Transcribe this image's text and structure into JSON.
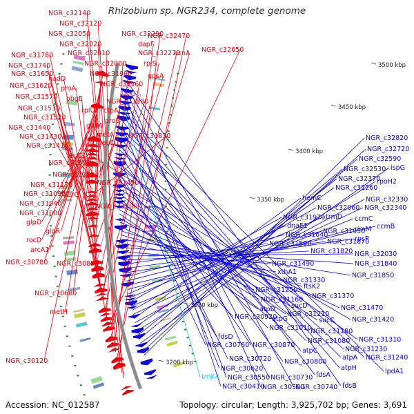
{
  "title": "Rhizobium sp. NGR234, complete genome",
  "accession": "Accession: NC_012587",
  "summary": "Topology: circular; Length: 3,925,702 bp; Genes: 3,691",
  "colors": {
    "forward": "#e8000b",
    "reverse": "#0a00e0",
    "rna": "#e060a0",
    "trna_cyan": "#18c8d8",
    "backbone": "#8a8a8a",
    "tick": "#2a8a2a"
  },
  "scale_labels": [
    "3500 kbp",
    "3450 kbp",
    "3400 kbp",
    "3350 kbp",
    "3300 kbp",
    "3250 kbp",
    "3200 kbp"
  ],
  "left_labels": [
    {
      "text": "NGR_c32140",
      "color": "red"
    },
    {
      "text": "NGR_c32120",
      "color": "red"
    },
    {
      "text": "NGR_c32050",
      "color": "red"
    },
    {
      "text": "NGR_c32290",
      "color": "red"
    },
    {
      "text": "NGR_c32470",
      "color": "red"
    },
    {
      "text": "NGR_c32020",
      "color": "red"
    },
    {
      "text": "dapF",
      "color": "red"
    },
    {
      "text": "NGR_c32010",
      "color": "red"
    },
    {
      "text": "NGR_c32270",
      "color": "red"
    },
    {
      "text": "acnA",
      "color": "red"
    },
    {
      "text": "NGR_c32650",
      "color": "red"
    },
    {
      "text": "NGR_c31780",
      "color": "red"
    },
    {
      "text": "NGR_c32000",
      "color": "red"
    },
    {
      "text": "rplS",
      "color": "red"
    },
    {
      "text": "NGR_c31740",
      "color": "red"
    },
    {
      "text": "NGR_c31990",
      "color": "red"
    },
    {
      "text": "gpsA",
      "color": "red"
    },
    {
      "text": "NGR_c31650",
      "color": "red"
    },
    {
      "text": "nadD",
      "color": "red"
    },
    {
      "text": "NGR_c31960",
      "color": "red"
    },
    {
      "text": "NGR_c31620",
      "color": "red"
    },
    {
      "text": "proA",
      "color": "red"
    },
    {
      "text": "trnG3",
      "color": "pink"
    },
    {
      "text": "NGR_c31570",
      "color": "red"
    },
    {
      "text": "obgE",
      "color": "red"
    },
    {
      "text": "NGR_c31890",
      "color": "red"
    },
    {
      "text": "rplU",
      "color": "red"
    },
    {
      "text": "ctpA",
      "color": "red"
    },
    {
      "text": "NGR_c31530",
      "color": "red"
    },
    {
      "text": "NGR_c31520",
      "color": "red"
    },
    {
      "text": "proB",
      "color": "red"
    },
    {
      "text": "galM",
      "color": "red"
    },
    {
      "text": "NGR_c31440",
      "color": "red"
    },
    {
      "text": "metA",
      "color": "red"
    },
    {
      "text": "NGR_c31830",
      "color": "red"
    },
    {
      "text": "NGR_c31430",
      "color": "red"
    },
    {
      "text": "leuD",
      "color": "red"
    },
    {
      "text": "NGR_c31410",
      "color": "red"
    },
    {
      "text": "leuC",
      "color": "red"
    },
    {
      "text": "NGR_c31390",
      "color": "red"
    },
    {
      "text": "NGR_c31380",
      "color": "red"
    },
    {
      "text": "NGR_c31450",
      "color": "red"
    },
    {
      "text": "NGR_c31170",
      "color": "red"
    },
    {
      "text": "NGR_c31090",
      "color": "red"
    },
    {
      "text": "xerC",
      "color": "red"
    },
    {
      "text": "NGR_c31040",
      "color": "red"
    },
    {
      "text": "NGR_c31200",
      "color": "red"
    },
    {
      "text": "NGR_c31000",
      "color": "red"
    },
    {
      "text": "glpD",
      "color": "red"
    },
    {
      "text": "glpR",
      "color": "red"
    },
    {
      "text": "rocD",
      "color": "red"
    },
    {
      "text": "arcA1",
      "color": "red"
    },
    {
      "text": "NGR_c30780",
      "color": "red"
    },
    {
      "text": "NGR_c30850",
      "color": "red"
    },
    {
      "text": "NGR_c30680",
      "color": "red"
    },
    {
      "text": "metH",
      "color": "red"
    },
    {
      "text": "NGR_c30120",
      "color": "red"
    }
  ],
  "right_labels": [
    {
      "text": "NGR_c32820",
      "color": "blue"
    },
    {
      "text": "NGR_c32720",
      "color": "blue"
    },
    {
      "text": "NGR_c32590",
      "color": "blue"
    },
    {
      "text": "ispG",
      "color": "blue"
    },
    {
      "text": "NGR_c32530",
      "color": "blue"
    },
    {
      "text": "NGR_c32370",
      "color": "blue"
    },
    {
      "text": "rpoH2",
      "color": "blue"
    },
    {
      "text": "NGR_c32260",
      "color": "blue"
    },
    {
      "text": "NGR_c32330",
      "color": "blue"
    },
    {
      "text": "hemC",
      "color": "blue"
    },
    {
      "text": "NGR_c32340",
      "color": "blue"
    },
    {
      "text": "NGR_c32060",
      "color": "blue"
    },
    {
      "text": "ccmC",
      "color": "blue"
    },
    {
      "text": "NGR_c31970",
      "color": "blue"
    },
    {
      "text": "trmD",
      "color": "blue"
    },
    {
      "text": "dnaE1",
      "color": "blue"
    },
    {
      "text": "rimM",
      "color": "blue"
    },
    {
      "text": "ccmB",
      "color": "blue"
    },
    {
      "text": "NGR_c31950",
      "color": "blue"
    },
    {
      "text": "NGR_c31640",
      "color": "blue"
    },
    {
      "text": "rpsP",
      "color": "blue"
    },
    {
      "text": "NGR_c31870",
      "color": "blue"
    },
    {
      "text": "NGR_c31590",
      "color": "blue"
    },
    {
      "text": "NGR_c31820",
      "color": "blue"
    },
    {
      "text": "NGR_c32030",
      "color": "blue"
    },
    {
      "text": "NGR_c31490",
      "color": "blue"
    },
    {
      "text": "NGR_c31840",
      "color": "blue"
    },
    {
      "text": "xthA1",
      "color": "blue"
    },
    {
      "text": "NGR_c31850",
      "color": "blue"
    },
    {
      "text": "NGR_c31330",
      "color": "blue"
    },
    {
      "text": "ftsK2",
      "color": "blue"
    },
    {
      "text": "NGR_c31250",
      "color": "blue"
    },
    {
      "text": "NGR_c31370",
      "color": "blue"
    },
    {
      "text": "NGR_c31160",
      "color": "blue"
    },
    {
      "text": "atpD",
      "color": "blue"
    },
    {
      "text": "sucD",
      "color": "blue"
    },
    {
      "text": "NGR_c31470",
      "color": "blue"
    },
    {
      "text": "NGR_c31210",
      "color": "blue"
    },
    {
      "text": "NGR_c30920",
      "color": "blue"
    },
    {
      "text": "atpG",
      "color": "blue"
    },
    {
      "text": "sucC",
      "color": "blue"
    },
    {
      "text": "NGR_c31420",
      "color": "blue"
    },
    {
      "text": "NGR_c31010",
      "color": "blue"
    },
    {
      "text": "NGR_c31180",
      "color": "blue"
    },
    {
      "text": "fdsD",
      "color": "blue"
    },
    {
      "text": "NGR_c31310",
      "color": "blue"
    },
    {
      "text": "NGR_c31080",
      "color": "blue"
    },
    {
      "text": "NGR_c30760",
      "color": "blue"
    },
    {
      "text": "NGR_c30870",
      "color": "blue"
    },
    {
      "text": "NGR_c31230",
      "color": "blue"
    },
    {
      "text": "atpC",
      "color": "blue"
    },
    {
      "text": "NGR_c30720",
      "color": "blue"
    },
    {
      "text": "NGR_c30800",
      "color": "blue"
    },
    {
      "text": "atpA",
      "color": "blue"
    },
    {
      "text": "NGR_c31240",
      "color": "blue"
    },
    {
      "text": "NGR_c30620",
      "color": "blue"
    },
    {
      "text": "fdsA",
      "color": "blue"
    },
    {
      "text": "atpH",
      "color": "blue"
    },
    {
      "text": "lpdA1",
      "color": "blue"
    },
    {
      "text": "trnK4",
      "color": "cyan"
    },
    {
      "text": "NGR_c30550",
      "color": "blue"
    },
    {
      "text": "NGR_c30730",
      "color": "blue"
    },
    {
      "text": "NGR_c30410",
      "color": "blue"
    },
    {
      "text": "NGR_c30560",
      "color": "blue"
    },
    {
      "text": "NGR_c30740",
      "color": "blue"
    },
    {
      "text": "fdsB",
      "color": "blue"
    }
  ]
}
